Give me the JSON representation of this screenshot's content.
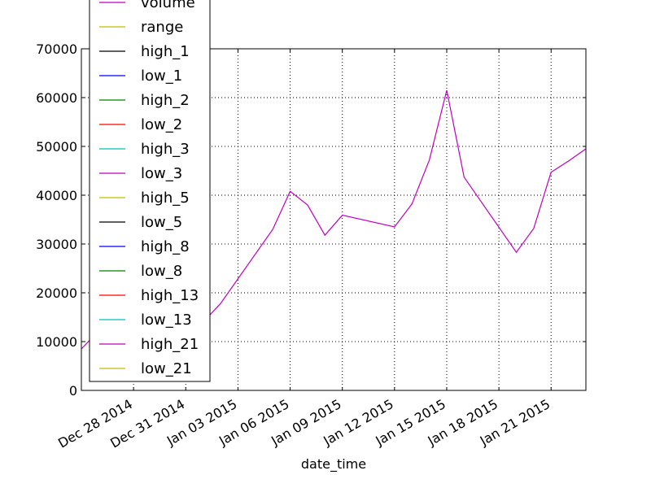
{
  "chart_data": {
    "type": "line",
    "title": "",
    "xlabel": "date_time",
    "ylabel": "",
    "ylim": [
      0,
      70000
    ],
    "xlim": [
      "2014-12-25",
      "2015-01-23"
    ],
    "x_ticks": [
      "2014-12-28",
      "2014-12-31",
      "2015-01-03",
      "2015-01-06",
      "2015-01-09",
      "2015-01-12",
      "2015-01-15",
      "2015-01-18",
      "2015-01-21"
    ],
    "x_tick_labels": [
      "Dec 28 2014",
      "Dec 31 2014",
      "Jan 03 2015",
      "Jan 06 2015",
      "Jan 09 2015",
      "Jan 12 2015",
      "Jan 15 2015",
      "Jan 18 2015",
      "Jan 21 2015"
    ],
    "y_ticks": [
      0,
      10000,
      20000,
      30000,
      40000,
      50000,
      60000,
      70000
    ],
    "y_tick_labels": [
      "0",
      "10000",
      "20000",
      "30000",
      "40000",
      "50000",
      "60000",
      "70000"
    ],
    "grid": true,
    "legend_position": "upper-left",
    "legend": [
      {
        "name": "volume",
        "color": "#bf00bf"
      },
      {
        "name": "range",
        "color": "#bfbf00"
      },
      {
        "name": "high_1",
        "color": "#000000"
      },
      {
        "name": "low_1",
        "color": "#0000ff"
      },
      {
        "name": "high_2",
        "color": "#008000"
      },
      {
        "name": "low_2",
        "color": "#ff0000"
      },
      {
        "name": "high_3",
        "color": "#00bfbf"
      },
      {
        "name": "low_3",
        "color": "#bf00bf"
      },
      {
        "name": "high_5",
        "color": "#bfbf00"
      },
      {
        "name": "low_5",
        "color": "#000000"
      },
      {
        "name": "high_8",
        "color": "#0000ff"
      },
      {
        "name": "low_8",
        "color": "#008000"
      },
      {
        "name": "high_13",
        "color": "#ff0000"
      },
      {
        "name": "low_13",
        "color": "#00bfbf"
      },
      {
        "name": "high_21",
        "color": "#bf00bf"
      },
      {
        "name": "low_21",
        "color": "#bfbf00"
      }
    ],
    "series": [
      {
        "name": "volume",
        "color": "#bf00bf",
        "x": [
          "2014-12-25",
          "2014-12-26",
          "2014-12-29",
          "2014-12-30",
          "2015-01-01",
          "2015-01-02",
          "2015-01-05",
          "2015-01-06",
          "2015-01-07",
          "2015-01-08",
          "2015-01-09",
          "2015-01-12",
          "2015-01-13",
          "2015-01-14",
          "2015-01-15",
          "2015-01-16",
          "2015-01-19",
          "2015-01-20",
          "2015-01-21",
          "2015-01-22",
          "2015-01-23"
        ],
        "y": [
          8500,
          12200,
          9000,
          13000,
          14000,
          17800,
          33000,
          40800,
          38000,
          31800,
          35900,
          33500,
          38200,
          47200,
          61500,
          43700,
          28300,
          33200,
          44700,
          47000,
          49500
        ]
      }
    ]
  }
}
